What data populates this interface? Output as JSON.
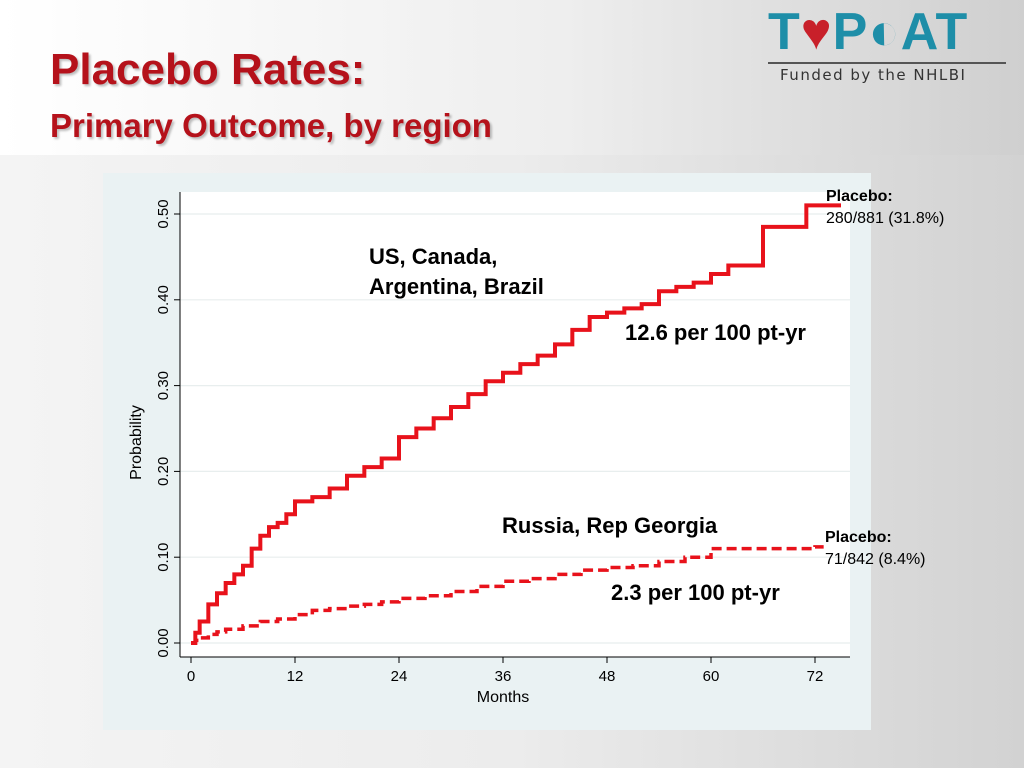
{
  "slide": {
    "title": "Placebo Rates:",
    "subtitle": "Primary Outcome, by region"
  },
  "logo": {
    "word_t": "T",
    "word_p": "P",
    "word_at": "AT",
    "tagline": "Funded by the NHLBI"
  },
  "colors": {
    "title": "#b5121b",
    "series": "#e8121b",
    "logo": "#1e8ea8"
  },
  "annotations": {
    "region1": "US, Canada, Argentina, Brazil",
    "rate1": "12.6 per 100 pt-yr",
    "region2": "Russia, Rep Georgia",
    "rate2": "2.3 per 100 pt-yr",
    "end1_label": "Placebo:",
    "end1_value": "280/881 (31.8%)",
    "end2_label": "Placebo:",
    "end2_value": "71/842 (8.4%)"
  },
  "chart_data": {
    "type": "line",
    "xlabel": "Months",
    "ylabel": "Probability",
    "xlim": [
      0,
      75
    ],
    "ylim": [
      0,
      0.52
    ],
    "xticks": [
      0,
      12,
      24,
      36,
      48,
      60,
      72
    ],
    "xtick_labels": [
      "0",
      "12",
      "24",
      "36",
      "48",
      "60",
      "72"
    ],
    "yticks": [
      0,
      0.1,
      0.2,
      0.3,
      0.4,
      0.5
    ],
    "ytick_labels": [
      "0.00",
      "0.10",
      "0.20",
      "0.30",
      "0.40",
      "0.50"
    ],
    "grid": "horizontal",
    "series": [
      {
        "style": "solid",
        "step": true,
        "x": [
          0,
          0.5,
          1,
          2,
          3,
          4,
          5,
          6,
          7,
          8,
          9,
          10,
          11,
          12,
          14,
          16,
          18,
          20,
          22,
          24,
          26,
          28,
          30,
          32,
          34,
          36,
          38,
          40,
          42,
          44,
          46,
          48,
          50,
          52,
          54,
          56,
          58,
          60,
          62,
          66,
          71,
          75
        ],
        "y": [
          0,
          0.012,
          0.025,
          0.045,
          0.058,
          0.07,
          0.08,
          0.09,
          0.11,
          0.125,
          0.135,
          0.14,
          0.15,
          0.165,
          0.17,
          0.18,
          0.195,
          0.205,
          0.215,
          0.24,
          0.25,
          0.262,
          0.275,
          0.29,
          0.305,
          0.315,
          0.325,
          0.335,
          0.348,
          0.365,
          0.38,
          0.385,
          0.39,
          0.395,
          0.41,
          0.415,
          0.42,
          0.43,
          0.44,
          0.485,
          0.51,
          0.51
        ]
      },
      {
        "style": "dashed",
        "step": true,
        "x": [
          0,
          0.5,
          1,
          2,
          3,
          4,
          6,
          8,
          10,
          12,
          14,
          16,
          18,
          20,
          22,
          24,
          27,
          30,
          33,
          36,
          39,
          42,
          45,
          48,
          51,
          54,
          57,
          60,
          64,
          68,
          72,
          73
        ],
        "y": [
          0,
          0.003,
          0.006,
          0.01,
          0.013,
          0.016,
          0.02,
          0.025,
          0.028,
          0.033,
          0.038,
          0.04,
          0.043,
          0.045,
          0.048,
          0.052,
          0.055,
          0.06,
          0.066,
          0.072,
          0.075,
          0.08,
          0.085,
          0.088,
          0.09,
          0.095,
          0.1,
          0.11,
          0.11,
          0.11,
          0.112,
          0.112
        ]
      }
    ]
  }
}
